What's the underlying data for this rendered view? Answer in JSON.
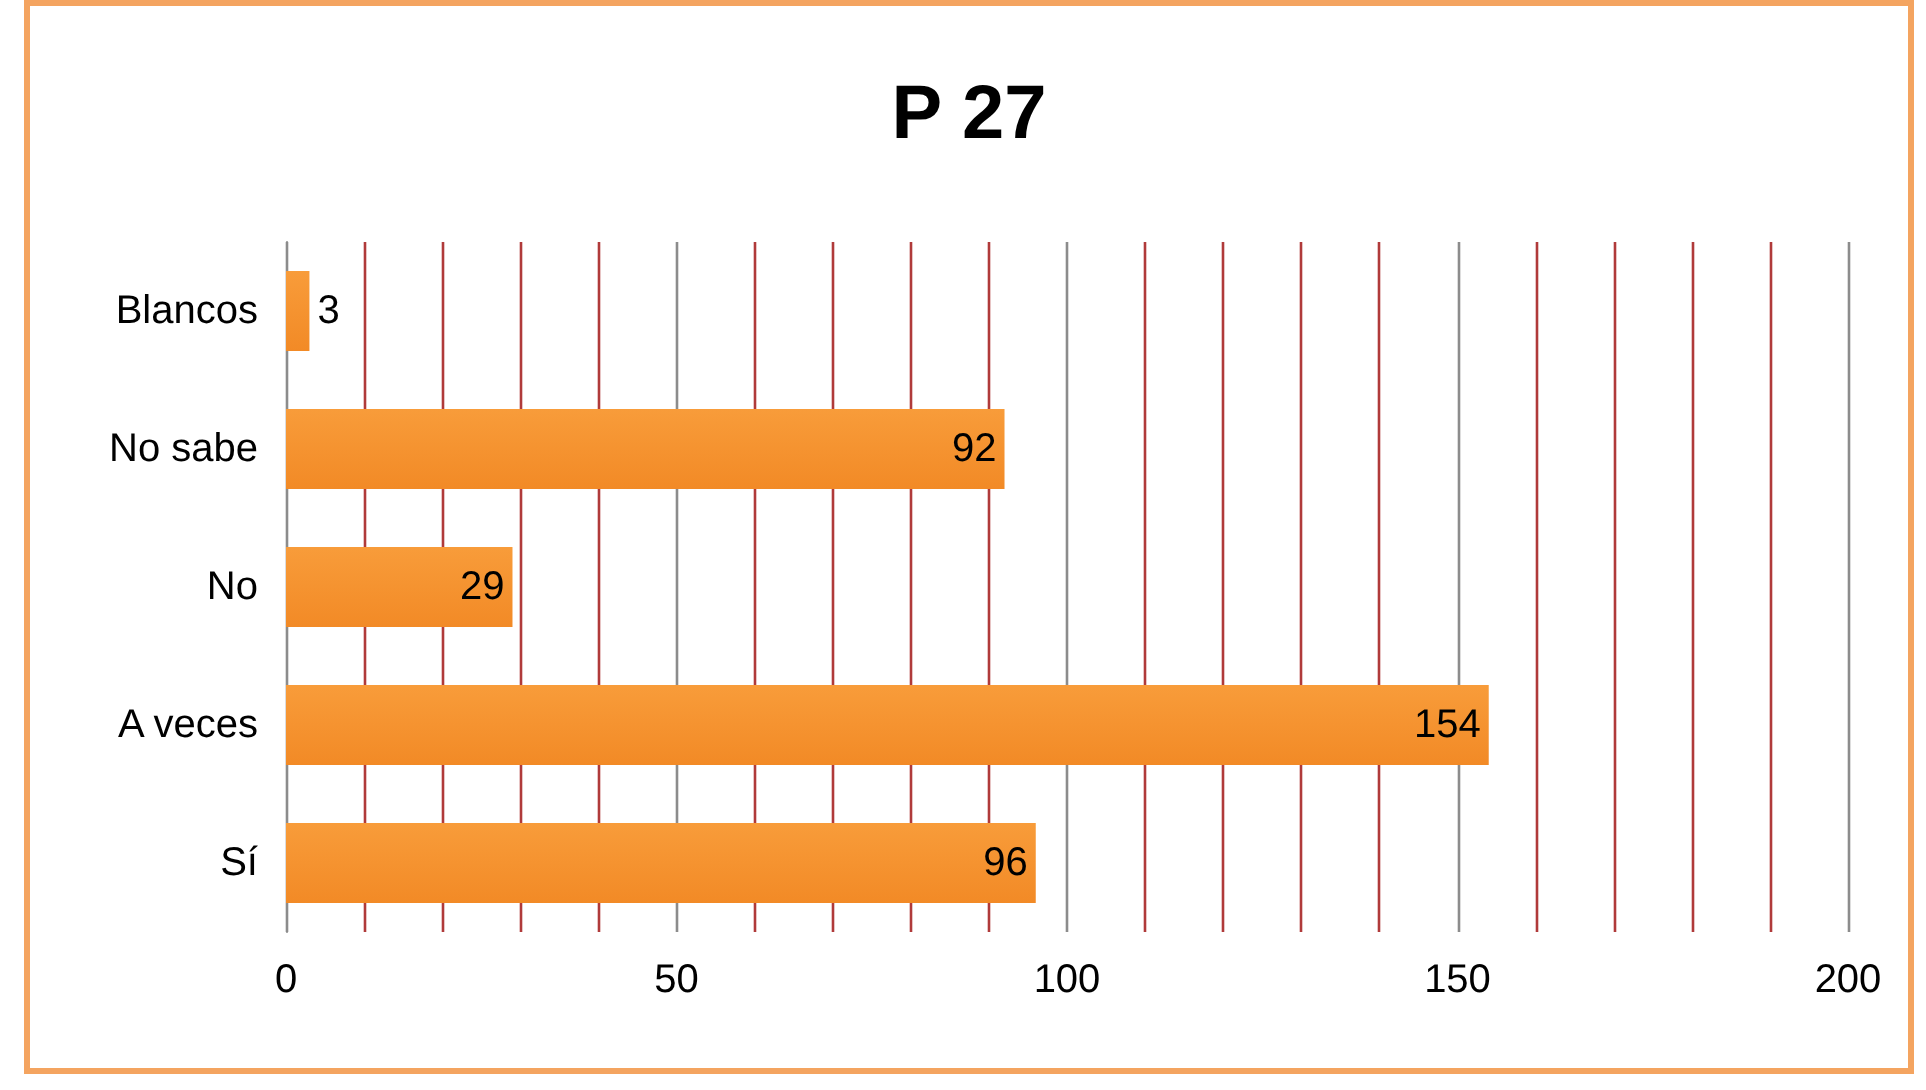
{
  "chart_data": {
    "type": "bar",
    "title": "P 27",
    "orientation": "horizontal",
    "categories": [
      "Blancos",
      "No sabe",
      "No",
      "A veces",
      "Sí"
    ],
    "values": [
      3,
      92,
      29,
      154,
      96
    ],
    "color": "#f28a26",
    "xlim": [
      0,
      200
    ],
    "xticks": [
      0,
      {
        "value": 10,
        "label": null
      },
      {
        "value": 20,
        "label": null
      },
      {
        "value": 30,
        "label": null
      },
      {
        "value": 40,
        "label": null
      },
      50,
      {
        "value": 60,
        "label": null
      },
      {
        "value": 70,
        "label": null
      },
      {
        "value": 80,
        "label": null
      },
      {
        "value": 90,
        "label": null
      },
      100,
      {
        "value": 110,
        "label": null
      },
      {
        "value": 120,
        "label": null
      },
      {
        "value": 130,
        "label": null
      },
      {
        "value": 140,
        "label": null
      },
      150,
      {
        "value": 160,
        "label": null
      },
      {
        "value": 170,
        "label": null
      },
      {
        "value": 180,
        "label": null
      },
      {
        "value": 190,
        "label": null
      },
      200
    ],
    "grid": "x",
    "data_labels": true
  }
}
